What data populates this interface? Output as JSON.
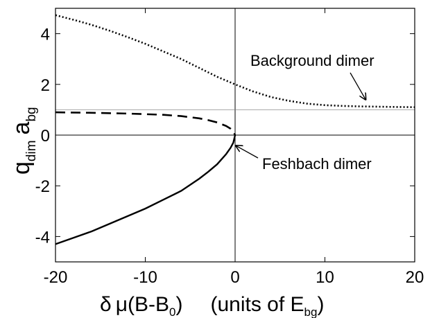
{
  "chart_data": {
    "type": "line",
    "xlim": [
      -20,
      20
    ],
    "ylim": [
      -5,
      5
    ],
    "x_ticks": [
      -20,
      -10,
      0,
      10,
      20
    ],
    "y_ticks": [
      -4,
      -2,
      0,
      2,
      4
    ],
    "x_tick_labels": [
      "-20",
      "-10",
      "0",
      "10",
      "20"
    ],
    "y_tick_labels": [
      "-4",
      "-2",
      "0",
      "2",
      "4"
    ],
    "xlabel": {
      "delta": "δ",
      "mu": "μ",
      "paren": "(B-B",
      "paren_sub": "0",
      "paren_close": ")",
      "units": "(units of E",
      "units_sub": "bg",
      "units_close": ")"
    },
    "ylabel": {
      "q": "q",
      "q_sub": "dim",
      "a": "a",
      "a_sub": "bg"
    },
    "grid": false,
    "reference_lines": [
      {
        "axis": "x",
        "value": 0
      },
      {
        "axis": "y",
        "value": 0
      },
      {
        "axis": "y",
        "value": 1
      }
    ],
    "series": [
      {
        "name": "Background dimer",
        "style": "dotted",
        "x": [
          -20,
          -18,
          -16,
          -14,
          -12,
          -10,
          -8,
          -6,
          -4,
          -2,
          0,
          2,
          4,
          6,
          8,
          10,
          12,
          14,
          16,
          18,
          20
        ],
        "y": [
          4.73,
          4.55,
          4.35,
          4.12,
          3.87,
          3.6,
          3.3,
          3.0,
          2.65,
          2.3,
          2.0,
          1.72,
          1.5,
          1.35,
          1.24,
          1.18,
          1.15,
          1.13,
          1.12,
          1.11,
          1.1
        ]
      },
      {
        "name": "Feshbach dimer",
        "style": "solid",
        "x": [
          -20,
          -18,
          -16,
          -14,
          -12,
          -10,
          -8,
          -6,
          -4,
          -3,
          -2,
          -1,
          -0.5,
          -0.2,
          0
        ],
        "y": [
          -4.3,
          -4.05,
          -3.8,
          -3.5,
          -3.2,
          -2.9,
          -2.55,
          -2.2,
          -1.72,
          -1.45,
          -1.15,
          -0.75,
          -0.5,
          -0.3,
          0
        ]
      },
      {
        "name": "",
        "style": "dashed",
        "x": [
          -20,
          -16,
          -12,
          -8,
          -6,
          -4,
          -3,
          -2,
          -1,
          -0.5,
          -0.2,
          0
        ],
        "y": [
          0.9,
          0.88,
          0.85,
          0.8,
          0.75,
          0.66,
          0.59,
          0.5,
          0.36,
          0.25,
          0.15,
          0
        ]
      }
    ],
    "annotations": [
      {
        "text": "Background dimer",
        "x": 15,
        "y": 1.4
      },
      {
        "text": "Feshbach dimer",
        "x": 0.4,
        "y": -0.5
      }
    ]
  }
}
